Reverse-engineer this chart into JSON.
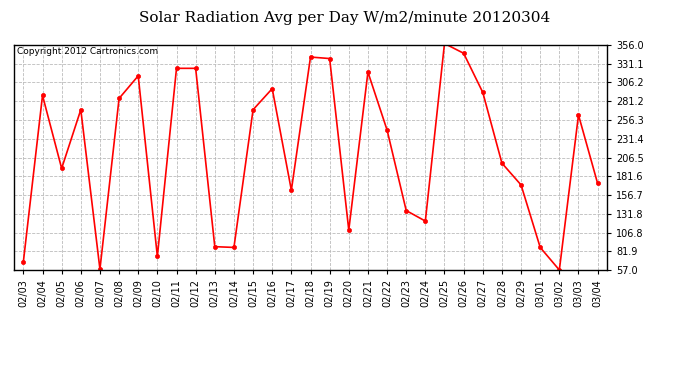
{
  "title": "Solar Radiation Avg per Day W/m2/minute 20120304",
  "copyright": "Copyright 2012 Cartronics.com",
  "dates": [
    "02/03",
    "02/04",
    "02/05",
    "02/06",
    "02/07",
    "02/08",
    "02/09",
    "02/10",
    "02/11",
    "02/12",
    "02/13",
    "02/14",
    "02/15",
    "02/16",
    "02/17",
    "02/18",
    "02/19",
    "02/20",
    "02/21",
    "02/22",
    "02/23",
    "02/24",
    "02/25",
    "02/26",
    "02/27",
    "02/28",
    "02/29",
    "03/01",
    "03/02",
    "03/03",
    "03/04"
  ],
  "values": [
    68,
    289,
    192,
    270,
    58,
    285,
    315,
    75,
    325,
    325,
    88,
    87,
    270,
    298,
    163,
    340,
    338,
    110,
    320,
    243,
    136,
    122,
    358,
    345,
    293,
    199,
    170,
    87,
    57,
    263,
    172
  ],
  "y_ticks": [
    57.0,
    81.9,
    106.8,
    131.8,
    156.7,
    181.6,
    206.5,
    231.4,
    256.3,
    281.2,
    306.2,
    331.1,
    356.0
  ],
  "line_color": "#ff0000",
  "marker": "o",
  "marker_size": 3,
  "background_color": "#ffffff",
  "grid_color": "#bbbbbb",
  "title_fontsize": 11,
  "tick_fontsize": 7,
  "copyright_fontsize": 6.5,
  "ylim_min": 57.0,
  "ylim_max": 356.0
}
